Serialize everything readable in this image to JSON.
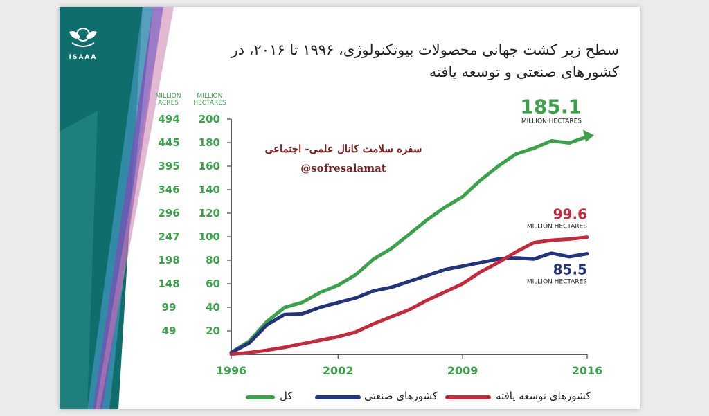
{
  "logo": {
    "name": "ISAAA"
  },
  "title": "سطح زیر کشت جهانی محصولات بیوتکنولوژی، ۱۹۹۶ تا ۲۰۱۶، در کشورهای صنعتی و توسعه یافته",
  "title_line1": "سطح زیر کشت جهانی محصولات بیوتکنولوژی، ۱۹۹۶ تا ۲۰۱۶، در",
  "title_line2": "کشورهای صنعتی و توسعه یافته",
  "watermark": {
    "line1": "سفره سلامت کانال علمی- اجتماعی",
    "line2": "@sofresalamat"
  },
  "axis_headers": {
    "acres": "MILLION ACRES",
    "hectares": "MILLION HECTARES"
  },
  "colors": {
    "total": "#3aa34a",
    "industrial": "#24337f",
    "developing": "#c62a3a",
    "axis_text": "#3aa34a"
  },
  "chart_data": {
    "type": "line",
    "title": "سطح زیر کشت جهانی محصولات بیوتکنولوژی، ۱۹۹۶ تا ۲۰۱۶، در کشورهای صنعتی و توسعه یافته",
    "xlabel": "",
    "ylabel": "MILLION HECTARES",
    "ylabel_secondary": "MILLION ACRES",
    "x": [
      1996,
      1997,
      1998,
      1999,
      2000,
      2001,
      2002,
      2003,
      2004,
      2005,
      2006,
      2007,
      2008,
      2009,
      2010,
      2011,
      2012,
      2013,
      2014,
      2015,
      2016
    ],
    "xticks": [
      "1996",
      "2002",
      "2009",
      "2016"
    ],
    "xlim": [
      1996,
      2016
    ],
    "ylim": [
      0,
      200
    ],
    "yticks": [
      20,
      40,
      60,
      80,
      100,
      120,
      140,
      160,
      180,
      200
    ],
    "acres_ticks": [
      "49",
      "99",
      "148",
      "198",
      "247",
      "296",
      "346",
      "395",
      "445",
      "494"
    ],
    "grid": false,
    "legend_position": "bottom",
    "series": [
      {
        "key": "total",
        "name": "کل",
        "values": [
          1.7,
          11,
          27.8,
          39.9,
          44.2,
          52.6,
          58.7,
          67.7,
          81,
          90,
          102,
          114.3,
          125,
          134,
          148,
          160,
          170.3,
          175.2,
          181.5,
          179.7,
          185.1
        ],
        "end_value": "185.1",
        "end_unit": "MILLION HECTARES"
      },
      {
        "key": "industrial",
        "name": "کشورهای صنعتی",
        "values": [
          1.5,
          9.5,
          25,
          34,
          34.5,
          40,
          44,
          48,
          54,
          57,
          62,
          67,
          72,
          75,
          78,
          81,
          82,
          81,
          86,
          83,
          85.5
        ],
        "end_value": "85.5",
        "end_unit": "MILLION HECTARES"
      },
      {
        "key": "developing",
        "name": "کشورهای توسعه یافته",
        "values": [
          0.2,
          1.5,
          3.5,
          6,
          9,
          12,
          15,
          19,
          26,
          32,
          38,
          46,
          53,
          60,
          70,
          78,
          87,
          95,
          97,
          98,
          99.6
        ],
        "end_value": "99.6",
        "end_unit": "MILLION HECTARES"
      }
    ]
  }
}
